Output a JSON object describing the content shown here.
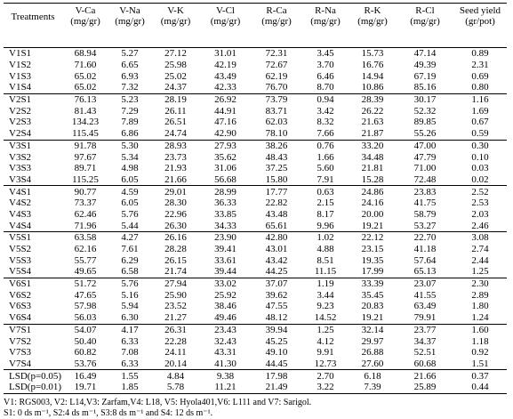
{
  "header": {
    "columns": [
      {
        "name": "Treatments"
      },
      {
        "name": "V-Ca",
        "unit": "(mg/gr)"
      },
      {
        "name": "V-Na",
        "unit": "(mg/gr)"
      },
      {
        "name": "V-K",
        "unit": "(mg/gr)"
      },
      {
        "name": "V-Cl",
        "unit": "(mg/gr)"
      },
      {
        "name": "R-Ca",
        "unit": "(mg/gr)"
      },
      {
        "name": "R-Na",
        "unit": "(mg/gr)"
      },
      {
        "name": "R-K",
        "unit": "(mg/gr)"
      },
      {
        "name": "R-Cl",
        "unit": "(mg/gr)"
      },
      {
        "name": "Seed yield",
        "unit": "(gr/pot)"
      }
    ]
  },
  "table": {
    "rows": [
      [
        "V1S1",
        "68.94",
        "5.27",
        "27.12",
        "31.01",
        "72.31",
        "3.45",
        "15.73",
        "47.14",
        "0.89"
      ],
      [
        "V1S2",
        "71.60",
        "6.65",
        "25.98",
        "42.19",
        "72.67",
        "3.70",
        "16.76",
        "49.39",
        "2.31"
      ],
      [
        "V1S3",
        "65.02",
        "6.93",
        "25.02",
        "43.49",
        "62.19",
        "6.46",
        "14.94",
        "67.19",
        "0.69"
      ],
      [
        "V1S4",
        "65.02",
        "7.32",
        "24.37",
        "42.33",
        "76.70",
        "8.70",
        "10.86",
        "85.16",
        "0.80"
      ],
      [
        "V2S1",
        "76.13",
        "5.23",
        "28.19",
        "26.92",
        "73.79",
        "0.94",
        "28.39",
        "30.17",
        "1.16"
      ],
      [
        "V2S2",
        "81.43",
        "7.29",
        "26.11",
        "44.91",
        "83.71",
        "3.42",
        "26.22",
        "52.32",
        "1.69"
      ],
      [
        "V2S3",
        "134.23",
        "7.89",
        "26.51",
        "47.16",
        "62.03",
        "8.32",
        "21.63",
        "89.85",
        "0.67"
      ],
      [
        "V2S4",
        "115.45",
        "6.86",
        "24.74",
        "42.90",
        "78.10",
        "7.66",
        "21.87",
        "55.26",
        "0.59"
      ],
      [
        "V3S1",
        "91.78",
        "5.30",
        "28.93",
        "27.93",
        "38.26",
        "0.76",
        "33.20",
        "47.00",
        "0.30"
      ],
      [
        "V3S2",
        "97.67",
        "5.34",
        "23.73",
        "35.62",
        "48.43",
        "1.66",
        "34.48",
        "47.79",
        "0.10"
      ],
      [
        "V3S3",
        "89.71",
        "4.98",
        "21.93",
        "31.06",
        "37.25",
        "5.60",
        "21.81",
        "71.00",
        "0.03"
      ],
      [
        "V3S4",
        "115.25",
        "6.05",
        "21.66",
        "56.68",
        "15.80",
        "7.91",
        "15.28",
        "72.48",
        "0.02"
      ],
      [
        "V4S1",
        "90.77",
        "4.59",
        "29.01",
        "28.99",
        "17.77",
        "0.63",
        "24.86",
        "23.83",
        "2.52"
      ],
      [
        "V4S2",
        "73.37",
        "6.05",
        "28.30",
        "36.33",
        "22.82",
        "2.15",
        "24.16",
        "41.75",
        "2.53"
      ],
      [
        "V4S3",
        "62.46",
        "5.76",
        "22.96",
        "33.85",
        "43.48",
        "8.17",
        "20.00",
        "58.79",
        "2.03"
      ],
      [
        "V4S4",
        "71.96",
        "5.44",
        "26.30",
        "34.33",
        "65.61",
        "9.96",
        "19.21",
        "53.27",
        "2.46"
      ],
      [
        "V5S1",
        "63.58",
        "4.27",
        "26.16",
        "23.90",
        "42.80",
        "1.02",
        "22.12",
        "22.70",
        "3.08"
      ],
      [
        "V5S2",
        "62.16",
        "7.61",
        "28.28",
        "39.41",
        "43.01",
        "4.88",
        "23.15",
        "41.18",
        "2.74"
      ],
      [
        "V5S3",
        "55.77",
        "6.29",
        "26.15",
        "33.61",
        "43.42",
        "8.51",
        "19.35",
        "57.64",
        "2.44"
      ],
      [
        "V5S4",
        "49.65",
        "6.58",
        "21.74",
        "39.44",
        "44.25",
        "11.15",
        "17.99",
        "65.13",
        "1.25"
      ],
      [
        "V6S1",
        "51.72",
        "5.76",
        "27.94",
        "33.02",
        "37.07",
        "1.19",
        "33.39",
        "23.07",
        "2.30"
      ],
      [
        "V6S2",
        "47.65",
        "5.16",
        "25.90",
        "25.92",
        "39.62",
        "3.44",
        "35.45",
        "41.55",
        "2.89"
      ],
      [
        "V6S3",
        "57.98",
        "5.94",
        "23.52",
        "38.46",
        "47.55",
        "9.23",
        "20.83",
        "63.49",
        "1.80"
      ],
      [
        "V6S4",
        "56.03",
        "6.30",
        "21.27",
        "49.46",
        "48.12",
        "14.52",
        "19.21",
        "79.91",
        "1.24"
      ],
      [
        "V7S1",
        "54.07",
        "4.17",
        "26.31",
        "23.43",
        "39.94",
        "1.25",
        "32.14",
        "23.77",
        "1.60"
      ],
      [
        "V7S2",
        "50.40",
        "6.33",
        "22.28",
        "32.43",
        "45.25",
        "4.12",
        "29.97",
        "34.37",
        "1.18"
      ],
      [
        "V7S3",
        "60.82",
        "7.08",
        "24.11",
        "43.31",
        "49.10",
        "9.91",
        "26.88",
        "52.51",
        "0.92"
      ],
      [
        "V7S4",
        "53.76",
        "6.33",
        "20.14",
        "41.30",
        "44.45",
        "12.73",
        "27.60",
        "60.68",
        "1.51"
      ],
      [
        "LSD(p=0.05)",
        "16.49",
        "1.55",
        "4.84",
        "9.38",
        "17.98",
        "2.70",
        "6.18",
        "21.66",
        "0.37"
      ],
      [
        "LSD(p=0.01)",
        "19.71",
        "1.85",
        "5.78",
        "11.21",
        "21.49",
        "3.22",
        "7.39",
        "25.89",
        "0.44"
      ]
    ]
  },
  "footnotes": [
    "V1: RGS003, V2: L14,V3: Zarfam,V4: L18, V5: Hyola401,V6: L111 and V7: Sarigol.",
    "S1: 0 ds m⁻¹, S2:4 ds m⁻¹, S3:8 ds m⁻¹ and S4: 12 ds m⁻¹."
  ]
}
